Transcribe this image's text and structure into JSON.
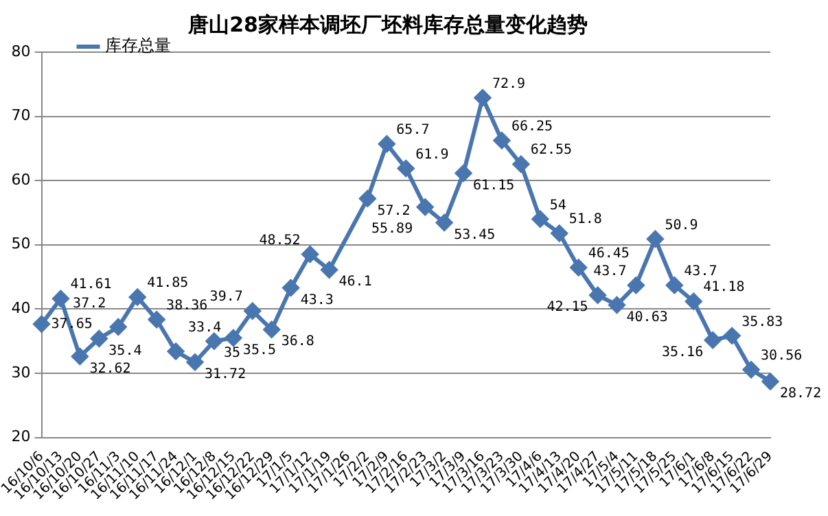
{
  "chart_data": {
    "type": "line",
    "title": "唐山28家样本调坯厂坯料库存总量变化趋势",
    "categories": [
      "16/10/6",
      "16/10/13",
      "16/10/20",
      "16/10/27",
      "16/11/3",
      "16/11/10",
      "16/11/17",
      "16/11/24",
      "16/12/1",
      "16/12/8",
      "16/12/15",
      "16/12/22",
      "16/12/29",
      "17/1/5",
      "17/1/12",
      "17/1/19",
      "17/1/26",
      "17/2/2",
      "17/2/9",
      "17/2/16",
      "17/2/23",
      "17/3/2",
      "17/3/9",
      "17/3/16",
      "17/3/23",
      "17/3/30",
      "17/4/6",
      "17/4/13",
      "17/4/20",
      "17/4/27",
      "17/5/4",
      "17/5/11",
      "17/5/18",
      "17/5/25",
      "17/6/1",
      "17/6/8",
      "17/6/15",
      "17/6/22",
      "17/6/29"
    ],
    "series": [
      {
        "name": "库存总量",
        "color": "#4a76b0",
        "values": [
          37.65,
          41.61,
          32.62,
          35.4,
          37.2,
          41.85,
          38.36,
          33.4,
          31.72,
          35,
          35.5,
          39.7,
          36.8,
          43.3,
          48.52,
          46.1,
          null,
          57.2,
          65.7,
          61.9,
          55.89,
          53.45,
          61.15,
          72.9,
          66.25,
          62.55,
          54,
          51.8,
          46.45,
          42.15,
          40.63,
          43.7,
          50.9,
          43.7,
          41.18,
          35.16,
          35.83,
          30.56,
          28.72
        ]
      }
    ],
    "ylim": [
      20,
      80
    ],
    "yticks": [
      20,
      30,
      40,
      50,
      60,
      70,
      80
    ],
    "grid": "y",
    "legend": "top left",
    "marker": "diamond",
    "line_style": "solid",
    "data_labels": true
  }
}
